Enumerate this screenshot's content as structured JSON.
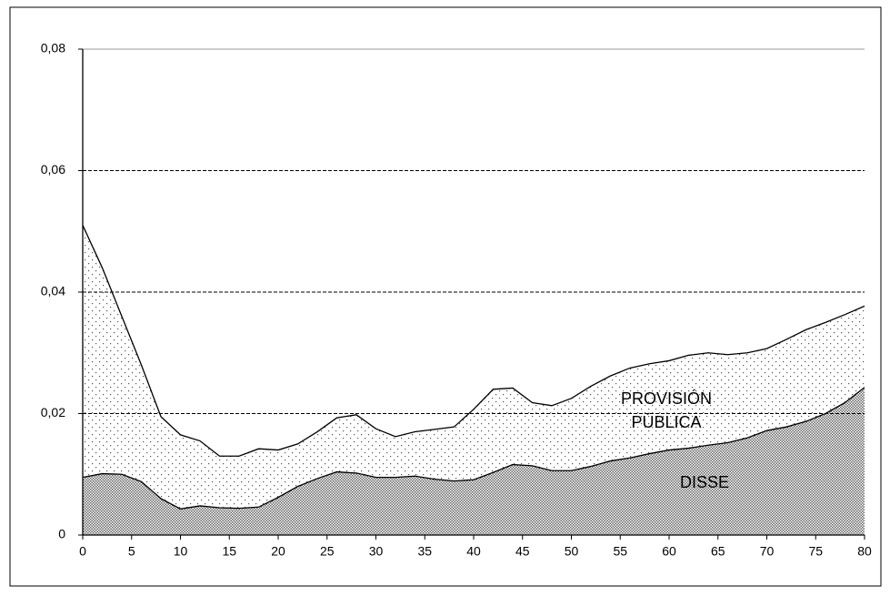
{
  "chart_data": {
    "type": "stacked_area",
    "x": [
      0,
      2,
      4,
      6,
      8,
      10,
      12,
      14,
      16,
      18,
      20,
      22,
      24,
      26,
      28,
      30,
      32,
      34,
      36,
      38,
      40,
      42,
      44,
      46,
      48,
      50,
      52,
      54,
      56,
      58,
      60,
      62,
      64,
      66,
      68,
      70,
      72,
      74,
      76,
      78,
      80
    ],
    "series": [
      {
        "name": "DISSE",
        "color": "#000000",
        "values": [
          0.0095,
          0.0101,
          0.01,
          0.0088,
          0.006,
          0.0043,
          0.0048,
          0.0045,
          0.0044,
          0.0046,
          0.0062,
          0.008,
          0.0093,
          0.0104,
          0.0102,
          0.0095,
          0.0095,
          0.0097,
          0.0092,
          0.0089,
          0.0091,
          0.0103,
          0.0116,
          0.0114,
          0.0106,
          0.0106,
          0.0113,
          0.0122,
          0.0127,
          0.0134,
          0.014,
          0.0143,
          0.0148,
          0.0152,
          0.016,
          0.0172,
          0.0178,
          0.0187,
          0.02,
          0.0218,
          0.0243
        ]
      },
      {
        "name": "PROVISIÓN PÚBLICA",
        "color": "#000000",
        "values": [
          0.0415,
          0.0339,
          0.026,
          0.0192,
          0.0135,
          0.0122,
          0.0107,
          0.0085,
          0.0086,
          0.0096,
          0.0078,
          0.007,
          0.0077,
          0.0089,
          0.0096,
          0.008,
          0.0067,
          0.0073,
          0.0082,
          0.0089,
          0.0116,
          0.0137,
          0.0126,
          0.0104,
          0.0107,
          0.0119,
          0.0132,
          0.014,
          0.0148,
          0.0148,
          0.0147,
          0.0153,
          0.0152,
          0.0145,
          0.014,
          0.0135,
          0.0144,
          0.0151,
          0.015,
          0.0145,
          0.0134
        ]
      }
    ],
    "xlim": [
      0,
      80
    ],
    "xticks": [
      0,
      5,
      10,
      15,
      20,
      25,
      30,
      35,
      40,
      45,
      50,
      55,
      60,
      65,
      70,
      75,
      80
    ],
    "ylim": [
      0,
      0.08
    ],
    "yticks": [
      0,
      {
        "value": 0.02,
        "label": "0,02"
      },
      {
        "value": 0.04,
        "label": "0,04"
      },
      {
        "value": 0.06,
        "label": "0,06"
      },
      {
        "value": 0.08,
        "label": "0,08"
      }
    ],
    "grid": true
  }
}
